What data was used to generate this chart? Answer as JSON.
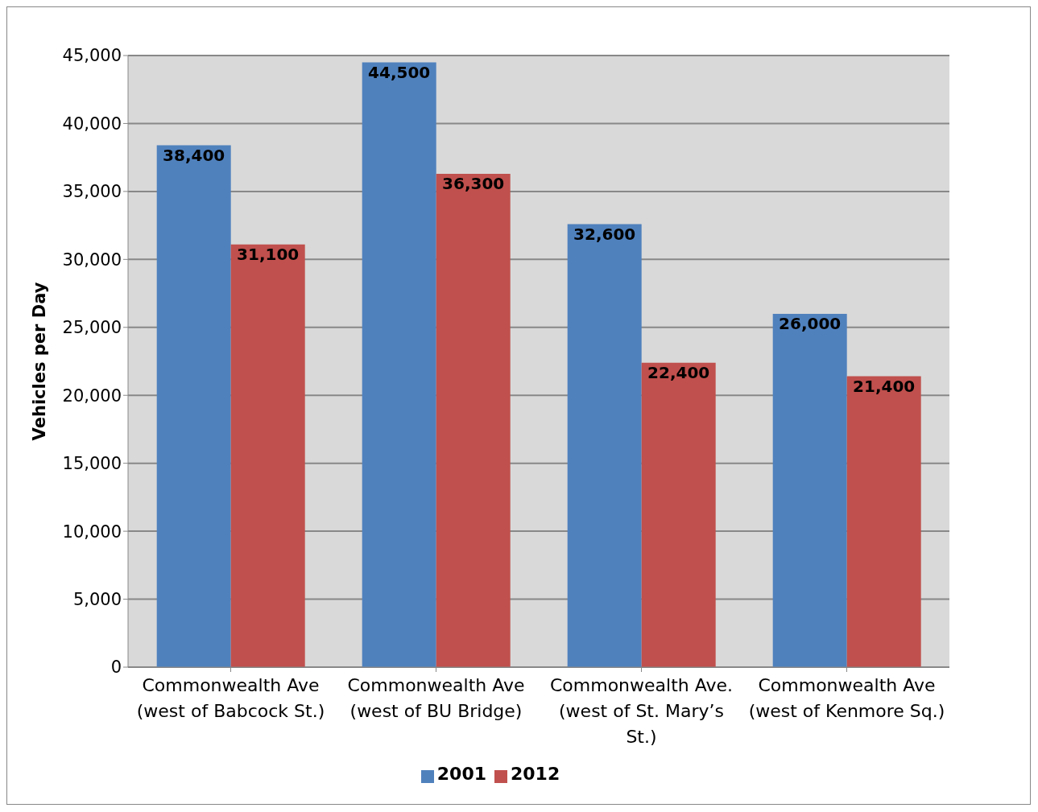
{
  "chart_data": {
    "type": "bar",
    "ylabel": "Vehicles per Day",
    "categories": [
      "Commonwealth Ave (west of Babcock St.)",
      "Commonwealth Ave (west of BU Bridge)",
      "Commonwealth Ave. (west of St. Mary’s St.)",
      "Commonwealth Ave (west of Kenmore Sq.)"
    ],
    "series": [
      {
        "name": "2001",
        "color": "#4f81bd",
        "values": [
          38400,
          44500,
          32600,
          26000
        ],
        "value_labels": [
          "38,400",
          "44,500",
          "32,600",
          "26,000"
        ]
      },
      {
        "name": "2012",
        "color": "#c0504d",
        "values": [
          31100,
          36300,
          22400,
          21400
        ],
        "value_labels": [
          "31,100",
          "36,300",
          "22,400",
          "21,400"
        ]
      }
    ],
    "ylim": [
      0,
      45000
    ],
    "yticks": [
      0,
      {
        "value": 5000,
        "label": "5,000"
      },
      {
        "value": 10000,
        "label": "10,000"
      },
      {
        "value": 15000,
        "label": "15,000"
      },
      {
        "value": 20000,
        "label": "20,000"
      },
      {
        "value": 25000,
        "label": "25,000"
      },
      {
        "value": 30000,
        "label": "30,000"
      },
      {
        "value": 35000,
        "label": "35,000"
      },
      {
        "value": 40000,
        "label": "40,000"
      },
      {
        "value": 45000,
        "label": "45,000"
      }
    ],
    "grid": "y",
    "legend": "bottom"
  }
}
